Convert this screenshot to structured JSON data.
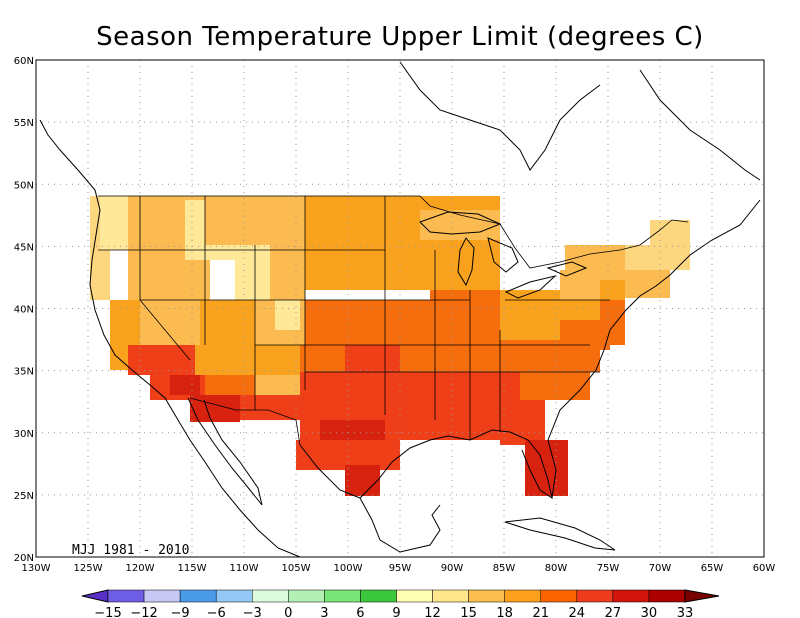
{
  "title": "Season Temperature Upper Limit (degrees C)",
  "period_label": "MJJ 1981 - 2010",
  "map": {
    "lon_range": [
      -130,
      -60
    ],
    "lat_range": [
      20,
      60
    ],
    "lon_ticks": [
      "130W",
      "125W",
      "120W",
      "115W",
      "110W",
      "105W",
      "100W",
      "95W",
      "90W",
      "85W",
      "80W",
      "75W",
      "70W",
      "65W",
      "60W"
    ],
    "lat_ticks": [
      "20N",
      "25N",
      "30N",
      "35N",
      "40N",
      "45N",
      "50N",
      "55N",
      "60N"
    ],
    "grid": true
  },
  "colorbar": {
    "labels": [
      "-15",
      "-12",
      "-9",
      "-6",
      "-3",
      "0",
      "3",
      "6",
      "9",
      "12",
      "15",
      "18",
      "21",
      "24",
      "27",
      "30",
      "33"
    ],
    "colors": [
      "#5a2fc8",
      "#6e5ee6",
      "#c8c8f5",
      "#4a9be8",
      "#96c8f5",
      "#dcfadc",
      "#b4f0b4",
      "#78e678",
      "#3cc83c",
      "#ffffb4",
      "#fee68c",
      "#fcbe50",
      "#fca01e",
      "#fa6400",
      "#f03c1e",
      "#d2140f",
      "#aa0000",
      "#780000"
    ]
  },
  "legend_colors": {
    "c12": "#ffe999",
    "c15": "#fdd77f",
    "c18": "#fbbb51",
    "c21": "#f9a21e",
    "c24": "#f66d0d",
    "c27": "#ef3f18",
    "c30": "#d7220f"
  }
}
